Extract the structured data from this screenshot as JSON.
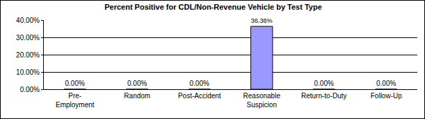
{
  "chart_data": {
    "type": "bar",
    "title": "Percent Positive for CDL/Non-Revenue Vehicle by Test Type",
    "categories": [
      "Pre-Employment",
      "Random",
      "Post-Accident",
      "Reasonable Suspicion",
      "Return-to-Duty",
      "Follow-Up"
    ],
    "values": [
      0,
      0,
      0,
      36.36,
      0,
      0
    ],
    "value_labels": [
      "0.00%",
      "0.00%",
      "0.00%",
      "36.36%",
      "0.00%",
      "0.00%"
    ],
    "data_labels": true,
    "color": "#9999ff",
    "ylim": [
      0,
      40
    ],
    "yticks": [
      {
        "value": 0,
        "label": "0.00%"
      },
      {
        "value": 10,
        "label": "10.00%"
      },
      {
        "value": 20,
        "label": "20.00%"
      },
      {
        "value": 30,
        "label": "30.00%"
      },
      {
        "value": 40,
        "label": "40.00%"
      }
    ],
    "grid": true
  }
}
